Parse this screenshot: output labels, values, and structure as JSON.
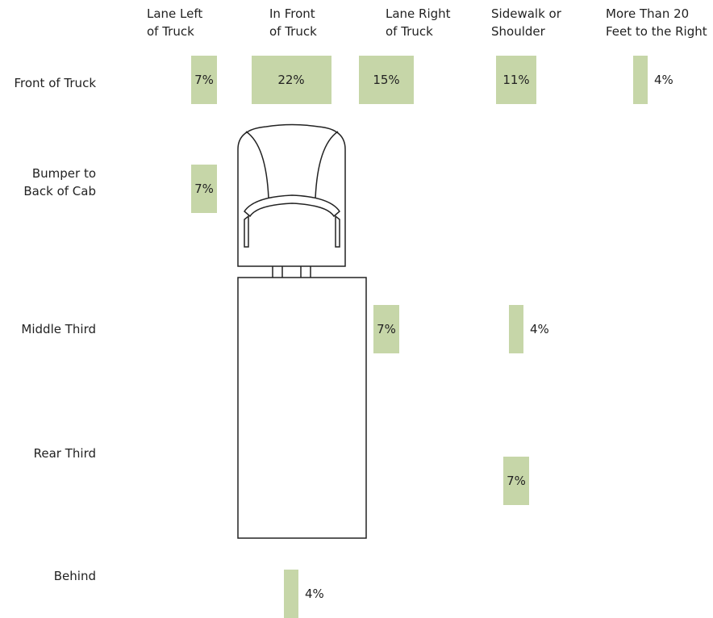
{
  "chart_data": {
    "type": "grid",
    "categories": [
      "Lane Left\nof Truck",
      "In Front\nof Truck",
      "Lane Right\nof Truck",
      "Sidewalk or\nShoulder",
      "More Than 20\nFeet to the Right"
    ],
    "color": "#c6d6a8",
    "series": [
      {
        "name": "Front of Truck",
        "values": [
          7,
          22,
          15,
          11,
          4
        ],
        "value_labels": [
          "7%",
          "22%",
          "15%",
          "11%",
          "4%"
        ]
      },
      {
        "name": "Bumper to\nBack of Cab",
        "values": [
          7,
          null,
          null,
          null,
          null
        ],
        "value_labels": [
          "7%",
          null,
          null,
          null,
          null
        ]
      },
      {
        "name": "Middle Third",
        "values": [
          null,
          null,
          7,
          4,
          null
        ],
        "value_labels": [
          null,
          null,
          "7%",
          "4%",
          null
        ]
      },
      {
        "name": "Rear Third",
        "values": [
          null,
          null,
          null,
          7,
          null
        ],
        "value_labels": [
          null,
          null,
          null,
          "7%",
          null
        ]
      },
      {
        "name": "Behind",
        "values": [
          null,
          4,
          null,
          null,
          null
        ],
        "value_labels": [
          null,
          "4%",
          null,
          null,
          null
        ]
      }
    ]
  }
}
